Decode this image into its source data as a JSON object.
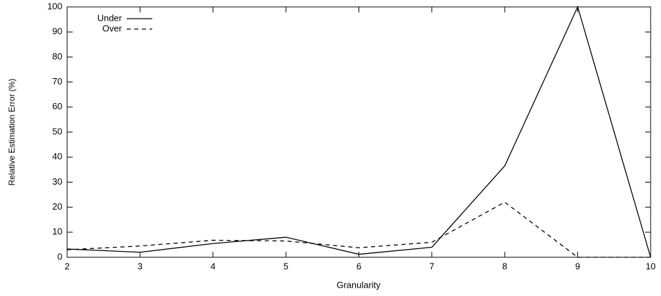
{
  "chart_data": {
    "type": "line",
    "x_label": "Granularity",
    "y_label": "Relative Estimation Error (%)",
    "x": [
      2,
      3,
      4,
      5,
      6,
      7,
      8,
      9,
      10
    ],
    "series": [
      {
        "name": "Under",
        "color": "#000000",
        "style": "solid",
        "values": [
          3.3,
          2,
          5.5,
          8,
          1.2,
          4,
          36.5,
          100,
          0
        ]
      },
      {
        "name": "Over",
        "color": "#000000",
        "style": "dashed",
        "values": [
          3,
          4.5,
          6.8,
          6.5,
          3.8,
          6,
          22,
          0,
          0
        ]
      }
    ],
    "xlim": [
      2,
      10
    ],
    "xticks": [
      2,
      3,
      4,
      5,
      6,
      7,
      8,
      9,
      10
    ],
    "ylim": [
      0,
      100
    ],
    "yticks": [
      0,
      10,
      20,
      30,
      40,
      50,
      60,
      70,
      80,
      90,
      100
    ],
    "grid": false,
    "legend": "top-left"
  }
}
